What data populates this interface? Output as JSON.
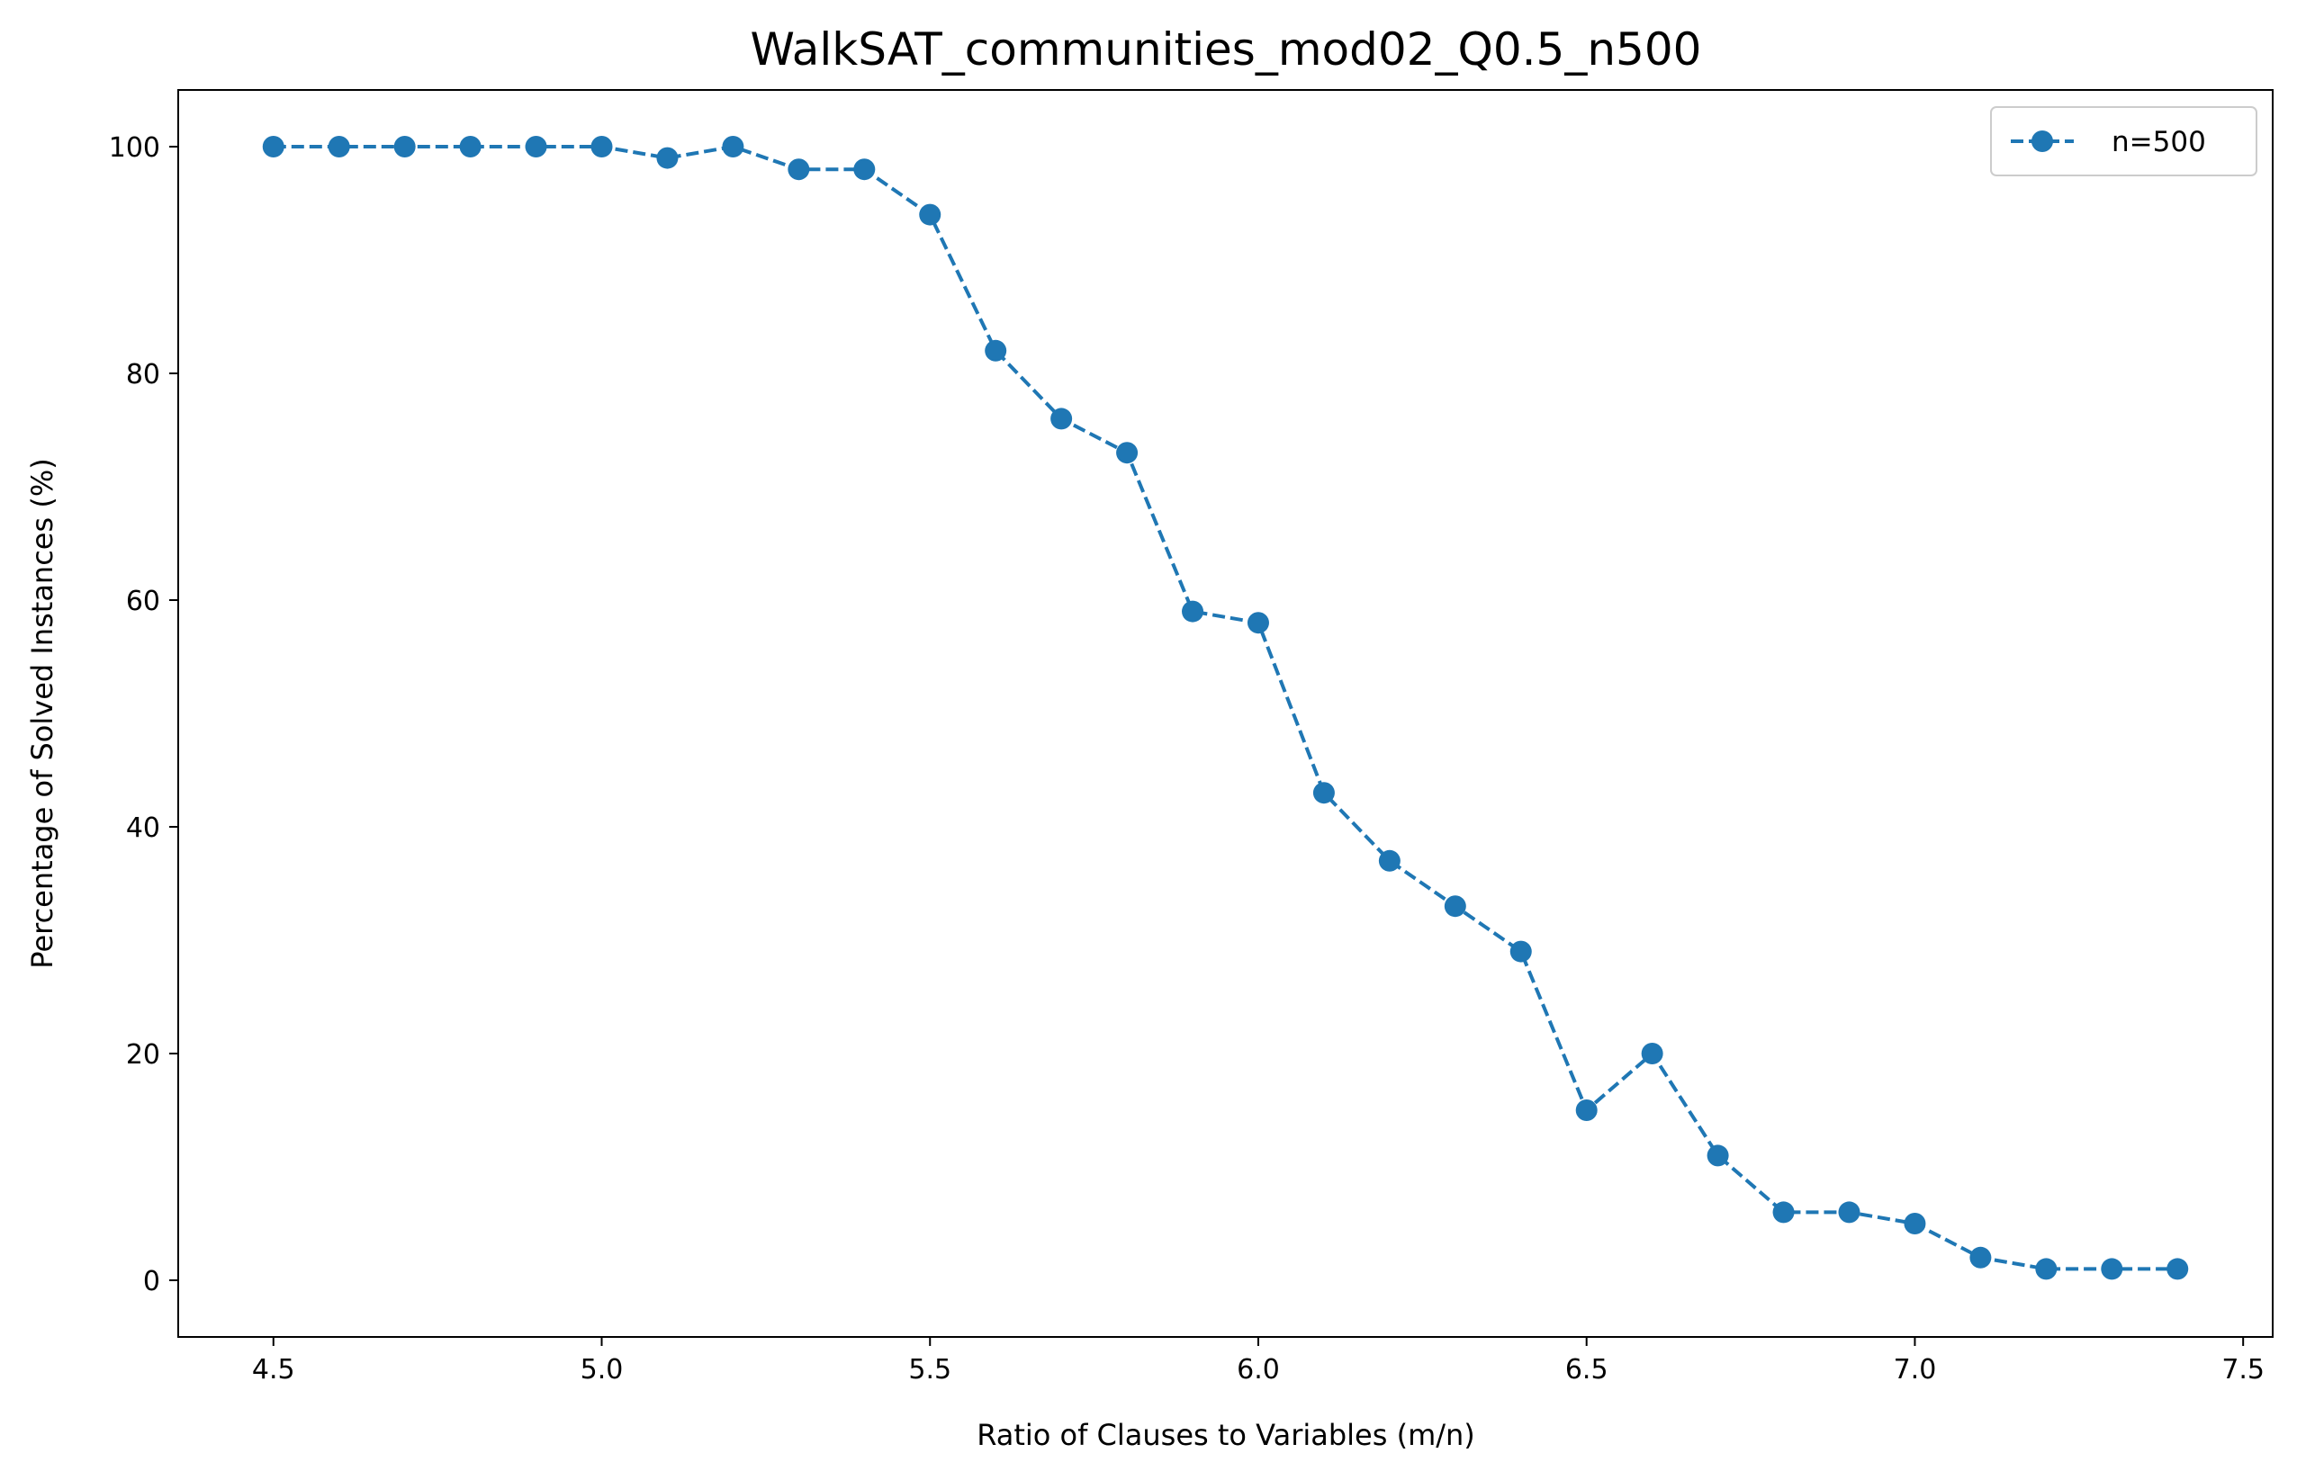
{
  "chart_data": {
    "type": "line",
    "title": "WalkSAT_communities_mod02_Q0.5_n500",
    "xlabel": "Ratio of Clauses to Variables (m/n)",
    "ylabel": "Percentage of Solved Instances (%)",
    "xlim": [
      4.355,
      7.545
    ],
    "ylim": [
      -5,
      105
    ],
    "xticks": [
      "4.5",
      "5.0",
      "5.5",
      "6.0",
      "6.5",
      "7.0",
      "7.5"
    ],
    "xtick_values": [
      4.5,
      5.0,
      5.5,
      6.0,
      6.5,
      7.0,
      7.5
    ],
    "yticks": [
      "0",
      "20",
      "40",
      "60",
      "80",
      "100"
    ],
    "ytick_values": [
      0,
      20,
      40,
      60,
      80,
      100
    ],
    "grid": false,
    "legend_position": "top-right",
    "series": [
      {
        "name": "n=500",
        "color": "#1f77b4",
        "line_style": "dashed",
        "marker": "circle",
        "x": [
          4.5,
          4.6,
          4.7,
          4.8,
          4.9,
          5.0,
          5.1,
          5.2,
          5.3,
          5.4,
          5.5,
          5.6,
          5.7,
          5.8,
          5.9,
          6.0,
          6.1,
          6.2,
          6.3,
          6.4,
          6.5,
          6.6,
          6.7,
          6.8,
          6.9,
          7.0,
          7.1,
          7.2,
          7.3,
          7.4
        ],
        "y": [
          100,
          100,
          100,
          100,
          100,
          100,
          99,
          100,
          98,
          98,
          94,
          82,
          76,
          73,
          59,
          58,
          43,
          37,
          33,
          29,
          15,
          20,
          11,
          6,
          6,
          5,
          2,
          1,
          1,
          1
        ]
      }
    ]
  }
}
